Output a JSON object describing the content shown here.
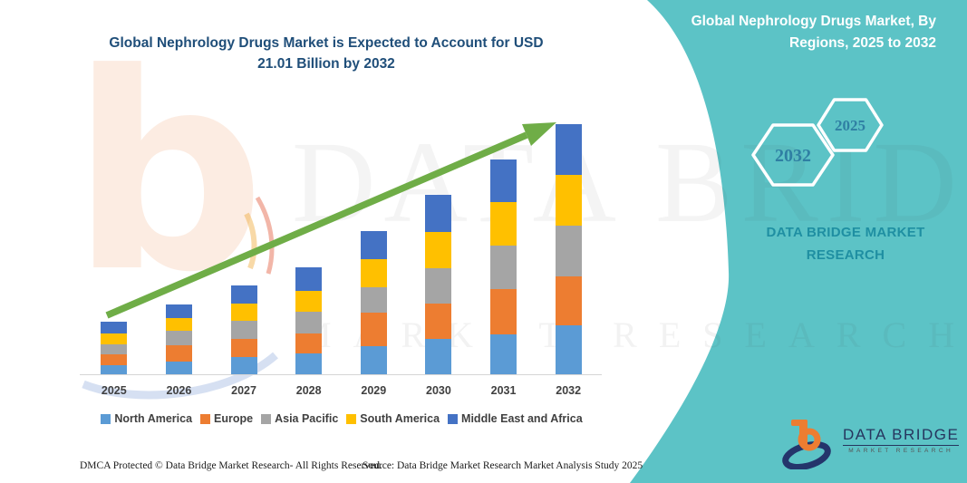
{
  "header": {
    "title_line1": "Global Nephrology Drugs Market is Expected to Account for USD",
    "title_line2": "21.01 Billion by 2032",
    "title_color": "#1F4E79"
  },
  "side_panel": {
    "bg_color": "#5CC3C6",
    "heading_line1": "Global Nephrology Drugs Market, By",
    "heading_line2": "Regions, 2025 to 2032",
    "hexagon_back_year": "2032",
    "hexagon_front_year": "2025",
    "brand_line1": "DATA BRIDGE MARKET",
    "brand_line2": "RESEARCH"
  },
  "chart_data": {
    "type": "bar",
    "stacked": true,
    "title": "Global Nephrology Drugs Market is Expected to Account for USD 21.01 Billion by 2032",
    "xlabel": "Year",
    "ylabel": "Market size (no value axis shown in figure)",
    "units": "relative segment heights estimated from pixels (chart is illustrative, no tick values)",
    "categories": [
      "2025",
      "2026",
      "2027",
      "2028",
      "2029",
      "2030",
      "2031",
      "2032"
    ],
    "series": [
      {
        "name": "North America",
        "color": "#5B9BD5",
        "values": [
          10,
          14,
          19,
          23,
          31,
          39,
          44,
          54
        ]
      },
      {
        "name": "Europe",
        "color": "#ED7D31",
        "values": [
          12,
          18,
          20,
          22,
          37,
          39,
          50,
          54
        ]
      },
      {
        "name": "Asia Pacific",
        "color": "#A5A5A5",
        "values": [
          11,
          16,
          20,
          24,
          28,
          39,
          48,
          56
        ]
      },
      {
        "name": "South America",
        "color": "#FFC000",
        "values": [
          12,
          14,
          19,
          23,
          31,
          40,
          48,
          56
        ]
      },
      {
        "name": "Middle East and Africa",
        "color": "#4472C4",
        "values": [
          13,
          15,
          20,
          26,
          31,
          41,
          47,
          56
        ]
      }
    ],
    "totals": [
      58,
      77,
      98,
      118,
      158,
      198,
      237,
      276
    ],
    "legend_position": "bottom",
    "grid": false,
    "trend_arrow": {
      "present": true,
      "color": "#6FAD47",
      "direction": "up-right"
    }
  },
  "watermark": {
    "line1": "DATA BRIDGE",
    "line2": "MARKET RESEARCH",
    "letter_b": "b"
  },
  "footer": {
    "left": "DMCA Protected © Data Bridge Market Research-  All Rights Reserved.",
    "source": "Source: Data Bridge Market Research  Market Analysis Study 2025"
  },
  "logo": {
    "name": "DATA BRIDGE",
    "tagline": "MARKET RESEARCH"
  }
}
